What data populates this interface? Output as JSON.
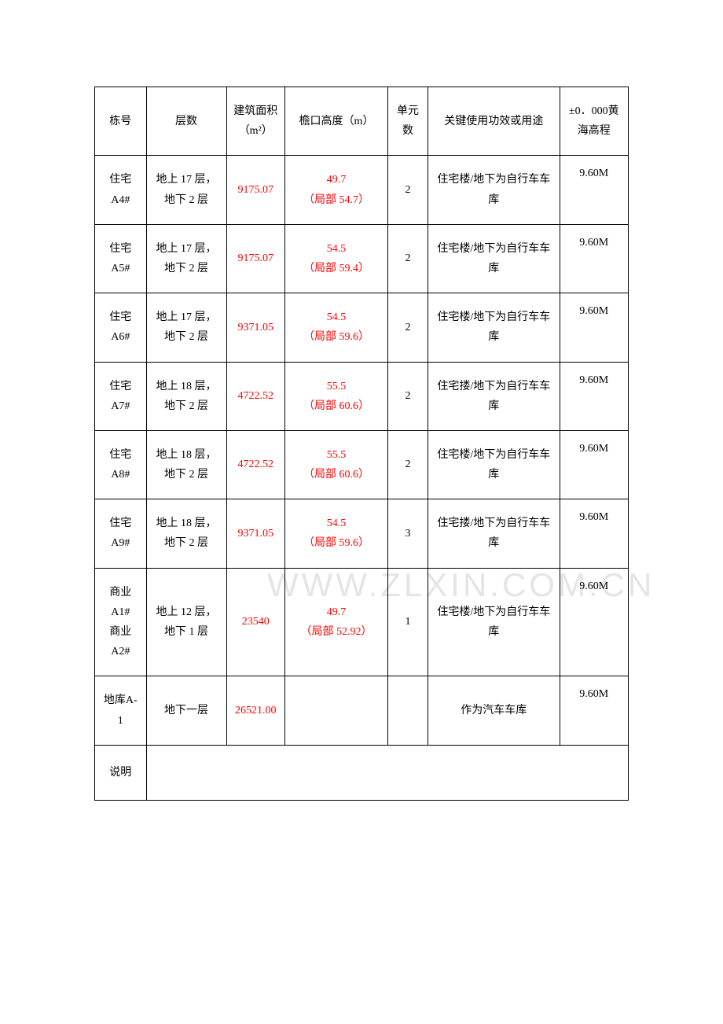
{
  "table": {
    "columns": [
      "栋号",
      "层数",
      "建筑面积（m²）",
      "檐口高度（m）",
      "单元数",
      "关键使用功效或用途",
      "±0．000黄海高程"
    ],
    "column_widths": [
      "9%",
      "14%",
      "10%",
      "18%",
      "7%",
      "23%",
      "12%"
    ],
    "rows": [
      {
        "building": "住宅A4#",
        "floors": "地上 17 层，地下 2 层",
        "area": "9175.07",
        "area_color": "#ff0000",
        "height": "49.7\n（局部 54.7）",
        "height_color": "#ff0000",
        "units": "2",
        "usage": "住宅楼/地下为自行车车库",
        "elevation": "9.60M"
      },
      {
        "building": "住宅A5#",
        "floors": "地上 17 层，地下 2 层",
        "area": "9175.07",
        "area_color": "#ff0000",
        "height": "54.5\n（局部 59.4）",
        "height_color": "#ff0000",
        "units": "2",
        "usage": "住宅楼/地下为自行车车库",
        "elevation": "9.60M"
      },
      {
        "building": "住宅A6#",
        "floors": "地上 17 层，地下 2 层",
        "area": "9371.05",
        "area_color": "#ff0000",
        "height": "54.5\n（局部 59.6）",
        "height_color": "#ff0000",
        "units": "2",
        "usage": "住宅楼/地下为自行车车库",
        "elevation": "9.60M"
      },
      {
        "building": "住宅A7#",
        "floors": "地上 18 层，地下 2 层",
        "area": "4722.52",
        "area_color": "#ff0000",
        "height": "55.5\n（局部 60.6）",
        "height_color": "#ff0000",
        "units": "2",
        "usage": "住宅搂/地下为自行车车库",
        "elevation": "9.60M"
      },
      {
        "building": "住宅A8#",
        "floors": "地上 18 层，地下 2 层",
        "area": "4722.52",
        "area_color": "#ff0000",
        "height": "55.5\n（局部 60.6）",
        "height_color": "#ff0000",
        "units": "2",
        "usage": "住宅楼/地下为自行车车库",
        "elevation": "9.60M"
      },
      {
        "building": "住宅A9#",
        "floors": "地上 18 层，地下 2 层",
        "area": "9371.05",
        "area_color": "#ff0000",
        "height": "54.5\n（局部 59.6）",
        "height_color": "#ff0000",
        "units": "3",
        "usage": "住宅搂/地下为自行车车库",
        "elevation": "9.60M"
      },
      {
        "building": "商业A1#\n商业A2#",
        "floors": "地上 12 层，地下 1 层",
        "area": "23540",
        "area_color": "#ff0000",
        "height": "49.7\n（局部 52.92）",
        "height_color": "#ff0000",
        "units": "1",
        "usage": "住宅楼/地下为自行车车库",
        "elevation": "9.60M"
      },
      {
        "building": "地库A-1",
        "floors": "地下一层",
        "area": "26521.00",
        "area_color": "#ff0000",
        "height": "",
        "height_color": "#000000",
        "units": "",
        "usage": "作为汽车车库",
        "elevation": "9.60M"
      },
      {
        "building": "说明",
        "floors": "",
        "area": "",
        "area_color": "#000000",
        "height": "",
        "height_color": "#000000",
        "units": "",
        "usage": "",
        "elevation": ""
      }
    ],
    "border_color": "#000000",
    "text_color": "#000000",
    "highlight_color": "#ff0000",
    "background_color": "#ffffff",
    "font_family": "SimSun",
    "font_size": 14
  },
  "watermark": "WWW.ZLXIN.COM.CN"
}
